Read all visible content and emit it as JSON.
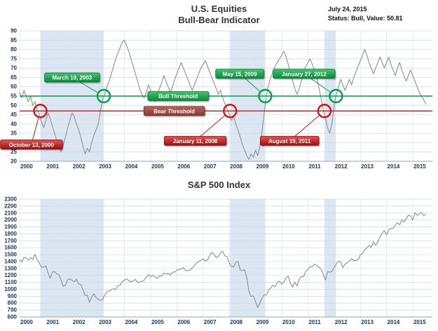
{
  "header": {
    "title_line1": "U.S. Equities",
    "title_line2": "Bull-Bear Indicator",
    "date": "July 24, 2015",
    "status": "Status: Bull, Value: 50.81"
  },
  "colors": {
    "bull_green": "#00a14b",
    "bear_red": "#cc2222",
    "band_blue": "#dce6f3",
    "line_gray": "#8f8f8f",
    "grid_blue": "#c9d7e8",
    "tick_navy": "#17365d"
  },
  "chart_data": [
    {
      "type": "line",
      "title": "Bull-Bear Indicator",
      "xlabel": "",
      "ylabel": "",
      "x_start": 2000,
      "x_step": 0.0833333,
      "x_end": 2015.75,
      "ylim": [
        20,
        90
      ],
      "ytick_step": 5,
      "xticks": [
        2000,
        2001,
        2002,
        2003,
        2004,
        2005,
        2006,
        2007,
        2008,
        2009,
        2010,
        2011,
        2012,
        2013,
        2014,
        2015
      ],
      "line_color": "#8f8f8f",
      "band_color": "#dce6f3",
      "grid_color": "#c9d7e8",
      "values": [
        57,
        54,
        58,
        55,
        52,
        55,
        50,
        52,
        48,
        45,
        41,
        38,
        42,
        46,
        43,
        39,
        35,
        31,
        28,
        25,
        29,
        33,
        38,
        42,
        46,
        44,
        40,
        37,
        33,
        28,
        24,
        27,
        25,
        30,
        34,
        37,
        40,
        47,
        53,
        56,
        60,
        63,
        67,
        71,
        75,
        78,
        81,
        84,
        85,
        82,
        79,
        75,
        71,
        67,
        63,
        59,
        56,
        54,
        57,
        61,
        58,
        55,
        52,
        55,
        59,
        62,
        66,
        63,
        60,
        57,
        60,
        64,
        67,
        70,
        73,
        70,
        67,
        64,
        61,
        58,
        61,
        64,
        67,
        70,
        72,
        74,
        71,
        68,
        65,
        62,
        59,
        56,
        58,
        54,
        51,
        48,
        45,
        42,
        44,
        40,
        37,
        33,
        29,
        26,
        23,
        21,
        24,
        22,
        26,
        23,
        28,
        36,
        46,
        55,
        61,
        65,
        68,
        71,
        73,
        75,
        77,
        79,
        76,
        72,
        68,
        63,
        59,
        56,
        59,
        63,
        67,
        71,
        73,
        75,
        72,
        69,
        65,
        60,
        54,
        48,
        43,
        38,
        35,
        40,
        50,
        56,
        60,
        64,
        61,
        58,
        61,
        64,
        61,
        65,
        68,
        71,
        74,
        77,
        80,
        77,
        73,
        70,
        67,
        70,
        73,
        76,
        73,
        70,
        73,
        76,
        72,
        69,
        66,
        70,
        73,
        69,
        66,
        63,
        66,
        69,
        66,
        63,
        60,
        57,
        55,
        53,
        50.81
      ],
      "bands": [
        [
          2000.79,
          2003.21
        ],
        [
          2008.03,
          2009.37
        ],
        [
          2011.63,
          2012.07
        ]
      ],
      "thresholds": [
        {
          "label": "Bull Threshold",
          "value": 55,
          "kind": "bull",
          "ribbon_x": 2006.05
        },
        {
          "label": "Bear Threshold",
          "value": 47,
          "kind": "bear",
          "ribbon_x": 2005.9
        }
      ],
      "markers": [
        {
          "x": 2000.79,
          "y": 47,
          "kind": "red"
        },
        {
          "x": 2008.03,
          "y": 47,
          "kind": "red"
        },
        {
          "x": 2011.63,
          "y": 47,
          "kind": "red"
        },
        {
          "x": 2003.21,
          "y": 55,
          "kind": "green"
        },
        {
          "x": 2009.37,
          "y": 55,
          "kind": "green"
        },
        {
          "x": 2012.07,
          "y": 55,
          "kind": "green"
        }
      ],
      "annotations": [
        {
          "label": "October 13, 2000",
          "kind": "red",
          "bx": 2000.45,
          "by": 29,
          "tx": 2000.79,
          "ty": 47
        },
        {
          "label": "January 11, 2008",
          "kind": "red",
          "bx": 2006.7,
          "by": 31,
          "tx": 2008.03,
          "ty": 47
        },
        {
          "label": "August 19, 2011",
          "kind": "red",
          "bx": 2010.3,
          "by": 31,
          "tx": 2011.63,
          "ty": 47
        },
        {
          "label": "March 19, 2003",
          "kind": "green",
          "bx": 2002.0,
          "by": 65,
          "tx": 2003.21,
          "ty": 55
        },
        {
          "label": "May 15, 2009",
          "kind": "green",
          "bx": 2008.4,
          "by": 67,
          "tx": 2009.37,
          "ty": 55
        },
        {
          "label": "January 27, 2012",
          "kind": "green",
          "bx": 2010.85,
          "by": 67,
          "tx": 2012.07,
          "ty": 55
        }
      ]
    },
    {
      "type": "line",
      "title": "S&P 500 Index",
      "xlabel": "",
      "ylabel": "",
      "x_start": 2000,
      "x_step": 0.0833333,
      "x_end": 2015.75,
      "ylim": [
        600,
        2300
      ],
      "ytick_step": 100,
      "xticks": [
        2000,
        2001,
        2002,
        2003,
        2004,
        2005,
        2006,
        2007,
        2008,
        2009,
        2010,
        2011,
        2012,
        2013,
        2014,
        2015
      ],
      "line_color": "#8f8f8f",
      "band_color": "#dce6f3",
      "grid_color": "#c9d7e8",
      "values": [
        1425,
        1390,
        1460,
        1450,
        1420,
        1455,
        1430,
        1505,
        1435,
        1380,
        1315,
        1320,
        1335,
        1240,
        1160,
        1250,
        1255,
        1225,
        1210,
        1130,
        1040,
        1060,
        1140,
        1148,
        1130,
        1107,
        1147,
        1077,
        1067,
        990,
        911,
        916,
        815,
        885,
        936,
        880,
        856,
        841,
        849,
        917,
        964,
        975,
        990,
        1008,
        996,
        1051,
        1058,
        1112,
        1131,
        1145,
        1126,
        1107,
        1121,
        1141,
        1102,
        1104,
        1115,
        1130,
        1174,
        1212,
        1181,
        1204,
        1181,
        1157,
        1192,
        1191,
        1234,
        1220,
        1229,
        1207,
        1249,
        1248,
        1280,
        1281,
        1295,
        1311,
        1270,
        1270,
        1277,
        1304,
        1336,
        1378,
        1401,
        1418,
        1438,
        1407,
        1421,
        1482,
        1531,
        1503,
        1455,
        1474,
        1527,
        1549,
        1481,
        1468,
        1379,
        1331,
        1323,
        1386,
        1400,
        1280,
        1267,
        1283,
        1166,
        969,
        896,
        903,
        826,
        735,
        798,
        873,
        919,
        919,
        987,
        1021,
        1057,
        1036,
        1096,
        1115,
        1074,
        1104,
        1169,
        1187,
        1089,
        1031,
        1102,
        1049,
        1141,
        1183,
        1181,
        1258,
        1286,
        1327,
        1326,
        1364,
        1345,
        1321,
        1292,
        1219,
        1131,
        1253,
        1247,
        1258,
        1312,
        1366,
        1408,
        1398,
        1310,
        1362,
        1379,
        1407,
        1441,
        1412,
        1416,
        1426,
        1498,
        1515,
        1569,
        1598,
        1631,
        1606,
        1686,
        1633,
        1682,
        1757,
        1806,
        1848,
        1783,
        1859,
        1872,
        1884,
        1924,
        1960,
        1931,
        2003,
        1972,
        2018,
        2068,
        2059,
        1995,
        2105,
        2068,
        2086,
        2107,
        2063,
        2080
      ],
      "bands": [
        [
          2000.79,
          2003.21
        ],
        [
          2008.03,
          2009.37
        ],
        [
          2011.63,
          2012.07
        ]
      ],
      "thresholds": [],
      "markers": [],
      "annotations": []
    }
  ]
}
